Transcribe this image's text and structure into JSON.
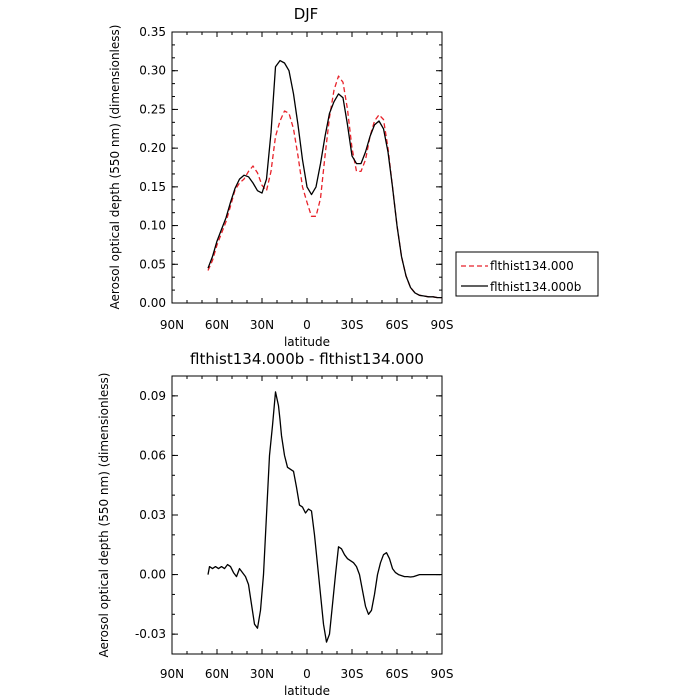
{
  "chart_data": [
    {
      "type": "line",
      "title": "DJF",
      "xlabel": "latitude",
      "ylabel": "Aerosol optical depth (550 nm) (dimensionless)",
      "xlim": [
        90,
        -90
      ],
      "ylim": [
        0,
        0.35
      ],
      "x_ticks": [
        {
          "value": 90,
          "label": "90N"
        },
        {
          "value": 60,
          "label": "60N"
        },
        {
          "value": 30,
          "label": "30N"
        },
        {
          "value": 0,
          "label": "0"
        },
        {
          "value": -30,
          "label": "30S"
        },
        {
          "value": -60,
          "label": "60S"
        },
        {
          "value": -90,
          "label": "90S"
        }
      ],
      "y_ticks": [
        {
          "value": 0,
          "label": "0.00"
        },
        {
          "value": 0.05,
          "label": "0.05"
        },
        {
          "value": 0.1,
          "label": "0.10"
        },
        {
          "value": 0.15,
          "label": "0.15"
        },
        {
          "value": 0.2,
          "label": "0.20"
        },
        {
          "value": 0.25,
          "label": "0.25"
        },
        {
          "value": 0.3,
          "label": "0.30"
        },
        {
          "value": 0.35,
          "label": "0.35"
        }
      ],
      "legend_position": "right",
      "series": [
        {
          "name": "flthist134.000",
          "color": "#e8222a",
          "dash": "dashed",
          "x": [
            66,
            63,
            60,
            57,
            54,
            51,
            48,
            45,
            42,
            39,
            36,
            33,
            30,
            27,
            24,
            21,
            18,
            15,
            12,
            9,
            6,
            3,
            0,
            -3,
            -6,
            -9,
            -12,
            -15,
            -18,
            -21,
            -24,
            -27,
            -30,
            -33,
            -36,
            -39,
            -42,
            -45,
            -48,
            -51,
            -54,
            -57,
            -60,
            -63,
            -66,
            -69,
            -72,
            -75,
            -78,
            -81,
            -84,
            -87,
            -90
          ],
          "y": [
            0.042,
            0.055,
            0.075,
            0.09,
            0.105,
            0.125,
            0.146,
            0.155,
            0.16,
            0.17,
            0.177,
            0.168,
            0.152,
            0.145,
            0.17,
            0.215,
            0.235,
            0.248,
            0.245,
            0.225,
            0.19,
            0.15,
            0.13,
            0.112,
            0.112,
            0.135,
            0.19,
            0.24,
            0.275,
            0.293,
            0.285,
            0.25,
            0.2,
            0.17,
            0.17,
            0.185,
            0.215,
            0.235,
            0.243,
            0.237,
            0.2,
            0.15,
            0.1,
            0.06,
            0.035,
            0.02,
            0.013,
            0.01,
            0.009,
            0.008,
            0.008,
            0.007,
            0.007
          ]
        },
        {
          "name": "flthist134.000b",
          "color": "#000000",
          "dash": "solid",
          "x": [
            66,
            63,
            60,
            57,
            54,
            51,
            48,
            45,
            42,
            39,
            36,
            33,
            30,
            27,
            24,
            21,
            18,
            15,
            12,
            9,
            6,
            3,
            0,
            -3,
            -6,
            -9,
            -12,
            -15,
            -18,
            -21,
            -24,
            -27,
            -30,
            -33,
            -36,
            -39,
            -42,
            -45,
            -48,
            -51,
            -54,
            -57,
            -60,
            -63,
            -66,
            -69,
            -72,
            -75,
            -78,
            -81,
            -84,
            -87,
            -90
          ],
          "y": [
            0.045,
            0.06,
            0.08,
            0.095,
            0.11,
            0.13,
            0.148,
            0.16,
            0.165,
            0.163,
            0.155,
            0.145,
            0.142,
            0.16,
            0.22,
            0.305,
            0.313,
            0.31,
            0.3,
            0.27,
            0.23,
            0.185,
            0.15,
            0.14,
            0.15,
            0.18,
            0.215,
            0.245,
            0.26,
            0.27,
            0.265,
            0.23,
            0.19,
            0.18,
            0.18,
            0.195,
            0.215,
            0.23,
            0.235,
            0.225,
            0.195,
            0.15,
            0.1,
            0.06,
            0.035,
            0.02,
            0.013,
            0.01,
            0.009,
            0.008,
            0.008,
            0.007,
            0.007
          ]
        }
      ]
    },
    {
      "type": "line",
      "title": "flthist134.000b - flthist134.000",
      "xlabel": "latitude",
      "ylabel": "Aerosol optical depth (550 nm) (dimensionless)",
      "xlim": [
        90,
        -90
      ],
      "ylim": [
        -0.04,
        0.1
      ],
      "x_ticks": [
        {
          "value": 90,
          "label": "90N"
        },
        {
          "value": 60,
          "label": "60N"
        },
        {
          "value": 30,
          "label": "30N"
        },
        {
          "value": 0,
          "label": "0"
        },
        {
          "value": -30,
          "label": "30S"
        },
        {
          "value": -60,
          "label": "60S"
        },
        {
          "value": -90,
          "label": "90S"
        }
      ],
      "y_ticks": [
        {
          "value": -0.03,
          "label": "-0.03"
        },
        {
          "value": 0,
          "label": "0.00"
        },
        {
          "value": 0.03,
          "label": "0.03"
        },
        {
          "value": 0.06,
          "label": "0.06"
        },
        {
          "value": 0.09,
          "label": "0.09"
        }
      ],
      "series": [
        {
          "color": "#000000",
          "dash": "solid",
          "x": [
            66,
            65,
            63,
            61,
            59,
            57,
            55,
            53,
            51,
            49,
            47,
            45,
            43,
            41,
            39,
            37,
            35,
            33,
            31,
            29,
            27,
            25,
            23,
            21,
            19,
            18,
            17,
            15,
            13,
            11,
            9,
            7,
            5,
            3,
            1,
            -1,
            -3,
            -5,
            -7,
            -9,
            -11,
            -13,
            -15,
            -17,
            -19,
            -21,
            -23,
            -25,
            -27,
            -29,
            -31,
            -33,
            -35,
            -37,
            -39,
            -41,
            -43,
            -45,
            -47,
            -49,
            -51,
            -53,
            -55,
            -57,
            -59,
            -61,
            -63,
            -65,
            -67,
            -69,
            -71,
            -73,
            -75,
            -77,
            -79,
            -81,
            -83,
            -85,
            -87,
            -89
          ],
          "y": [
            0.0,
            0.004,
            0.003,
            0.004,
            0.003,
            0.004,
            0.003,
            0.005,
            0.004,
            0.001,
            -0.001,
            0.003,
            0.001,
            -0.001,
            -0.005,
            -0.015,
            -0.025,
            -0.027,
            -0.018,
            0.0,
            0.03,
            0.06,
            0.075,
            0.092,
            0.085,
            0.078,
            0.07,
            0.06,
            0.054,
            0.053,
            0.052,
            0.044,
            0.035,
            0.034,
            0.031,
            0.033,
            0.032,
            0.02,
            0.005,
            -0.01,
            -0.025,
            -0.034,
            -0.03,
            -0.015,
            0.0,
            0.014,
            0.013,
            0.01,
            0.008,
            0.007,
            0.006,
            0.004,
            0.0,
            -0.008,
            -0.016,
            -0.02,
            -0.018,
            -0.01,
            0.0,
            0.006,
            0.01,
            0.011,
            0.008,
            0.003,
            0.001,
            0.0,
            -0.0005,
            -0.001,
            -0.001,
            -0.0012,
            -0.001,
            -0.0005,
            0.0,
            0.0,
            0.0,
            0.0,
            0.0,
            0.0,
            0.0,
            0.0
          ]
        }
      ]
    }
  ]
}
